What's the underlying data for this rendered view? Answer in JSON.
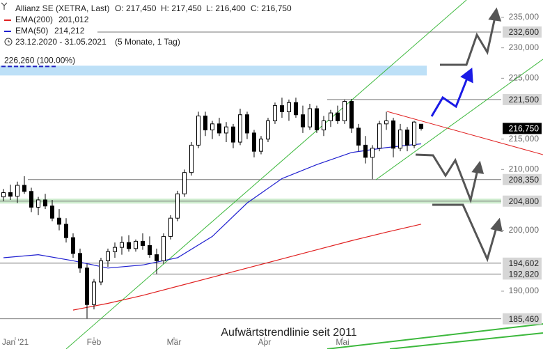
{
  "chart_data": {
    "type": "candlestick",
    "title": "Allianz SE (XETRA, Last)",
    "ohlc_labels": [
      "O: 217,450",
      "H: 217,450",
      "L: 216,400",
      "C: 216,750"
    ],
    "period": "23.12.2020 - 31.05.2021",
    "interval": "(5 Monate, 1 Tag)",
    "annotation": "Aufwärtstrendlinie seit 2011",
    "fib_level": {
      "value": 226260,
      "label": "226,260 (100.00%)",
      "color": "#bde0f7"
    },
    "ylim": [
      180494,
      237863
    ],
    "xlim": [
      -0.5,
      71.5
    ],
    "yticks": [
      {
        "value": 235000,
        "label": "235,000"
      },
      {
        "value": 230000,
        "label": "230,000"
      },
      {
        "value": 225000,
        "label": "225,000"
      },
      {
        "value": 215000,
        "label": "215,000"
      },
      {
        "value": 210000,
        "label": "210,000"
      },
      {
        "value": 200000,
        "label": "200,000"
      },
      {
        "value": 190000,
        "label": "190,000"
      }
    ],
    "xticks": [
      {
        "value": 1.7,
        "label": "Jan '21"
      },
      {
        "value": 13,
        "label": "Feb"
      },
      {
        "value": 24.5,
        "label": "Mär"
      },
      {
        "value": 37.5,
        "label": "Apr"
      },
      {
        "value": 48.7,
        "label": "Mai"
      }
    ],
    "levels": [
      {
        "value": 232600,
        "label": "232,600"
      },
      {
        "value": 221500,
        "label": "221,500"
      },
      {
        "value": 208350,
        "label": "208,350"
      },
      {
        "value": 204800,
        "label": "204,800"
      },
      {
        "value": 194602,
        "label": "194,602"
      },
      {
        "value": 192820,
        "label": "192,820"
      },
      {
        "value": 185460,
        "label": "185,460"
      }
    ],
    "last_price": {
      "value": 216750,
      "label": "216,750"
    },
    "candles": [
      [
        205500,
        206800,
        204800,
        206200
      ],
      [
        206200,
        207500,
        205000,
        205600
      ],
      [
        205600,
        208000,
        204500,
        207400
      ],
      [
        207400,
        208900,
        206000,
        206400
      ],
      [
        206400,
        207000,
        203000,
        203800
      ],
      [
        203800,
        205500,
        202500,
        205000
      ],
      [
        205000,
        206000,
        203500,
        204000
      ],
      [
        204000,
        205000,
        201500,
        202000
      ],
      [
        202000,
        203500,
        200000,
        201000
      ],
      [
        201000,
        202000,
        198000,
        198800
      ],
      [
        198800,
        199500,
        195500,
        196200
      ],
      [
        196200,
        197000,
        193000,
        193800
      ],
      [
        193800,
        194500,
        185500,
        187800
      ],
      [
        187800,
        192000,
        187000,
        191500
      ],
      [
        191500,
        195500,
        191000,
        195000
      ],
      [
        195000,
        197000,
        194000,
        196500
      ],
      [
        196500,
        198000,
        195500,
        197200
      ],
      [
        197200,
        199000,
        196000,
        198000
      ],
      [
        198000,
        199200,
        196500,
        197000
      ],
      [
        197000,
        198500,
        196500,
        198200
      ],
      [
        198200,
        199500,
        196800,
        197500
      ],
      [
        197500,
        199000,
        195500,
        196000
      ],
      [
        196000,
        197000,
        192800,
        195000
      ],
      [
        195000,
        199500,
        194500,
        199000
      ],
      [
        199000,
        202500,
        198500,
        202000
      ],
      [
        202000,
        206500,
        201500,
        206000
      ],
      [
        206000,
        210000,
        205500,
        209500
      ],
      [
        209500,
        214500,
        209000,
        214000
      ],
      [
        214000,
        219500,
        213500,
        218800
      ],
      [
        218800,
        219500,
        215500,
        216500
      ],
      [
        216500,
        218000,
        215000,
        217500
      ],
      [
        217500,
        218500,
        215500,
        216000
      ],
      [
        216000,
        217800,
        214500,
        217000
      ],
      [
        217000,
        217500,
        213500,
        214500
      ],
      [
        214500,
        220000,
        214000,
        219000
      ],
      [
        219000,
        219500,
        215000,
        216000
      ],
      [
        216000,
        216500,
        212000,
        213000
      ],
      [
        213000,
        215500,
        212500,
        215000
      ],
      [
        215000,
        218500,
        214500,
        218000
      ],
      [
        218000,
        221000,
        217500,
        220500
      ],
      [
        220500,
        221800,
        218500,
        219500
      ],
      [
        219500,
        221500,
        218000,
        221000
      ],
      [
        221000,
        221800,
        218500,
        219000
      ],
      [
        219000,
        220500,
        216000,
        217000
      ],
      [
        217000,
        220800,
        216500,
        220000
      ],
      [
        220000,
        220500,
        216000,
        216500
      ],
      [
        216500,
        218800,
        215500,
        218000
      ],
      [
        218000,
        219800,
        217000,
        219300
      ],
      [
        219300,
        220500,
        217500,
        218000
      ],
      [
        218000,
        221500,
        217500,
        221200
      ],
      [
        221200,
        221600,
        216000,
        216800
      ],
      [
        216800,
        217500,
        213000,
        214000
      ],
      [
        214000,
        215500,
        211000,
        212000
      ],
      [
        212000,
        214000,
        208400,
        213500
      ],
      [
        213500,
        218000,
        213000,
        217500
      ],
      [
        217500,
        219500,
        216500,
        218000
      ],
      [
        218000,
        218500,
        212000,
        213500
      ],
      [
        213500,
        217500,
        213000,
        216500
      ],
      [
        216500,
        217000,
        213000,
        214000
      ],
      [
        214000,
        218000,
        213500,
        217800
      ],
      [
        217450,
        217450,
        216400,
        216750
      ]
    ],
    "series": [
      {
        "name": "EMA(200)",
        "color": "#e02020",
        "last_label": "201,012",
        "x": [
          10,
          15,
          20,
          25,
          30,
          35,
          40,
          45,
          50,
          55,
          60
        ],
        "values": [
          186900,
          188000,
          189300,
          190800,
          192300,
          193800,
          195300,
          196800,
          198300,
          199700,
          201012
        ]
      },
      {
        "name": "EMA(50)",
        "color": "#2020d0",
        "last_label": "214,212",
        "x": [
          0,
          5,
          10,
          15,
          20,
          25,
          30,
          35,
          40,
          45,
          50,
          55,
          60
        ],
        "values": [
          195500,
          196000,
          195000,
          193800,
          194300,
          195500,
          199000,
          204500,
          208500,
          210800,
          212800,
          213600,
          214212
        ]
      }
    ]
  }
}
